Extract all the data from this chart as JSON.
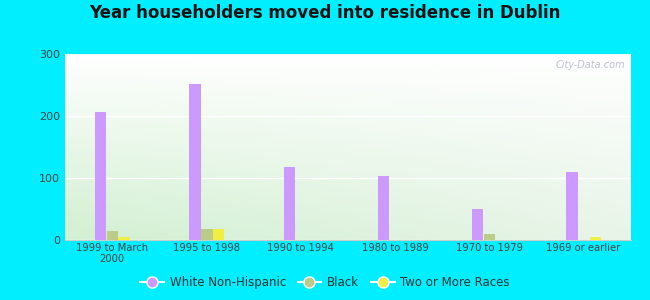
{
  "title": "Year householders moved into residence in Dublin",
  "categories": [
    "1999 to March\n2000",
    "1995 to 1998",
    "1990 to 1994",
    "1980 to 1989",
    "1970 to 1979",
    "1969 or earlier"
  ],
  "white_non_hispanic": [
    207,
    252,
    117,
    103,
    50,
    110
  ],
  "black": [
    15,
    18,
    0,
    0,
    10,
    0
  ],
  "two_or_more_races": [
    5,
    18,
    0,
    0,
    0,
    5
  ],
  "colors": {
    "white_non_hispanic": "#cc99ff",
    "black": "#bbcc88",
    "two_or_more_races": "#eeee44"
  },
  "ylim": [
    0,
    300
  ],
  "yticks": [
    0,
    100,
    200,
    300
  ],
  "background_outer": "#00eeff",
  "bar_width": 0.12,
  "legend_labels": [
    "White Non-Hispanic",
    "Black",
    "Two or More Races"
  ]
}
